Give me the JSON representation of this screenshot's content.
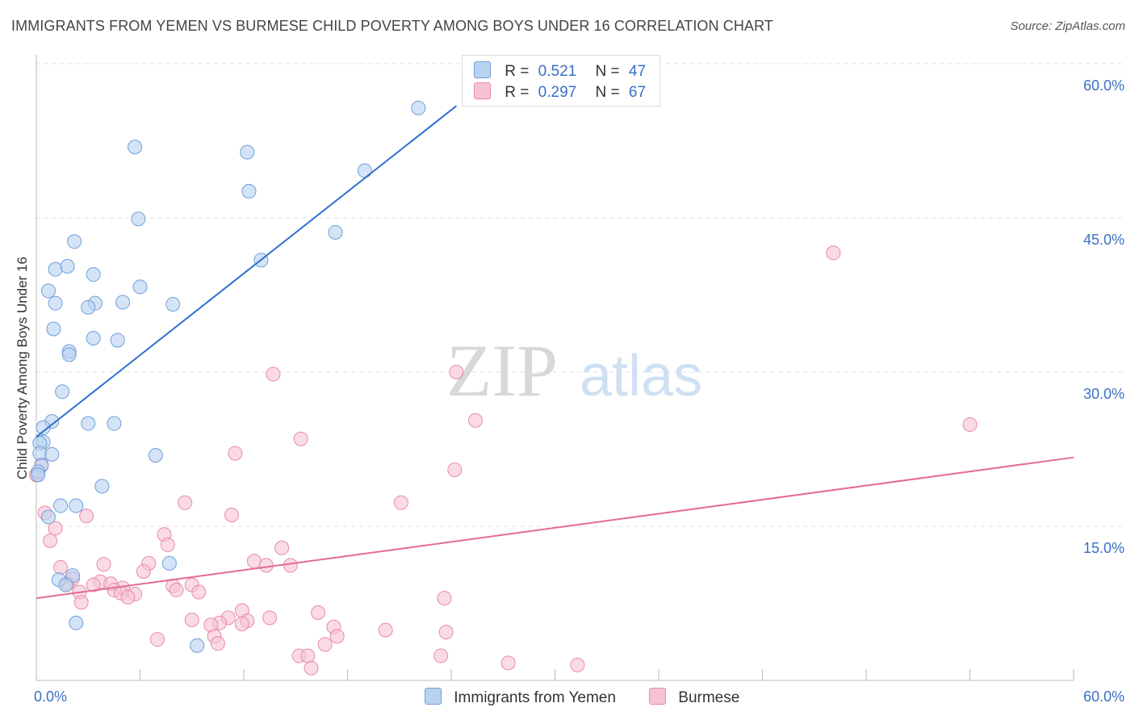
{
  "title": "IMMIGRANTS FROM YEMEN VS BURMESE CHILD POVERTY AMONG BOYS UNDER 16 CORRELATION CHART",
  "source": "Source: ZipAtlas.com",
  "watermark": {
    "zip": "ZIP",
    "atlas": "atlas"
  },
  "legend": {
    "r_label": "R =",
    "n_label": "N =",
    "series": [
      {
        "r": "0.521",
        "n": "47"
      },
      {
        "r": "0.297",
        "n": "67"
      }
    ]
  },
  "chart_data": {
    "type": "scatter",
    "title": "IMMIGRANTS FROM YEMEN VS BURMESE CHILD POVERTY AMONG BOYS UNDER 16 CORRELATION CHART",
    "xlabel": "",
    "ylabel": "Child Poverty Among Boys Under 16",
    "xlim": [
      0,
      60
    ],
    "ylim": [
      0,
      60
    ],
    "x_tick_labels": [
      "0.0%",
      "60.0%"
    ],
    "y_tick_labels": [
      "15.0%",
      "30.0%",
      "45.0%",
      "60.0%"
    ],
    "y_ticks": [
      15,
      30,
      45,
      60
    ],
    "grid": true,
    "colors": {
      "yemen_fill": "#b8d2f0",
      "yemen_stroke": "#6f9fd8",
      "yemen_line": "#2f6fcf",
      "burmese_fill": "#f7c3d3",
      "burmese_stroke": "#e88aa8",
      "burmese_line": "#e26b98",
      "tick_label": "#3a6fc4"
    },
    "series": [
      {
        "name": "Immigrants from Yemen",
        "trend": {
          "x": [
            0,
            24.3
          ],
          "y": [
            23.7,
            55.9
          ]
        },
        "points": [
          [
            22.1,
            55.7
          ],
          [
            5.7,
            51.9
          ],
          [
            12.2,
            51.4
          ],
          [
            19.0,
            49.6
          ],
          [
            12.3,
            47.6
          ],
          [
            5.9,
            44.9
          ],
          [
            17.3,
            43.6
          ],
          [
            2.2,
            42.7
          ],
          [
            13.0,
            40.9
          ],
          [
            1.1,
            40.0
          ],
          [
            1.8,
            40.3
          ],
          [
            3.3,
            39.5
          ],
          [
            6.0,
            38.3
          ],
          [
            0.7,
            37.9
          ],
          [
            1.1,
            36.7
          ],
          [
            3.4,
            36.7
          ],
          [
            5.0,
            36.8
          ],
          [
            7.9,
            36.6
          ],
          [
            3.0,
            36.3
          ],
          [
            1.0,
            34.2
          ],
          [
            3.3,
            33.3
          ],
          [
            4.7,
            33.1
          ],
          [
            1.9,
            32.0
          ],
          [
            1.9,
            31.7
          ],
          [
            1.5,
            28.1
          ],
          [
            0.9,
            25.2
          ],
          [
            3.0,
            25.0
          ],
          [
            4.5,
            25.0
          ],
          [
            0.4,
            24.6
          ],
          [
            0.4,
            23.2
          ],
          [
            0.2,
            23.1
          ],
          [
            0.2,
            22.1
          ],
          [
            0.9,
            22.0
          ],
          [
            6.9,
            21.9
          ],
          [
            0.3,
            20.9
          ],
          [
            0.1,
            20.3
          ],
          [
            0.1,
            20.0
          ],
          [
            3.8,
            18.9
          ],
          [
            1.4,
            17.0
          ],
          [
            2.3,
            17.0
          ],
          [
            0.7,
            15.9
          ],
          [
            7.7,
            11.4
          ],
          [
            1.3,
            9.8
          ],
          [
            2.1,
            10.2
          ],
          [
            1.7,
            9.3
          ],
          [
            2.3,
            5.6
          ],
          [
            9.3,
            3.4
          ]
        ]
      },
      {
        "name": "Burmese",
        "trend": {
          "x": [
            0,
            60
          ],
          "y": [
            8.0,
            21.7
          ]
        },
        "points": [
          [
            46.1,
            41.6
          ],
          [
            13.7,
            29.8
          ],
          [
            24.3,
            30.0
          ],
          [
            25.4,
            25.3
          ],
          [
            54.0,
            24.9
          ],
          [
            15.3,
            23.5
          ],
          [
            11.5,
            22.1
          ],
          [
            24.2,
            20.5
          ],
          [
            21.1,
            17.3
          ],
          [
            8.6,
            17.3
          ],
          [
            11.3,
            16.1
          ],
          [
            2.9,
            16.0
          ],
          [
            0.5,
            16.3
          ],
          [
            1.1,
            14.8
          ],
          [
            0.8,
            13.6
          ],
          [
            7.4,
            14.2
          ],
          [
            7.6,
            13.2
          ],
          [
            14.2,
            12.9
          ],
          [
            12.6,
            11.6
          ],
          [
            14.7,
            11.2
          ],
          [
            13.3,
            11.2
          ],
          [
            6.5,
            11.4
          ],
          [
            3.9,
            11.3
          ],
          [
            1.4,
            11.0
          ],
          [
            6.2,
            10.6
          ],
          [
            2.1,
            9.9
          ],
          [
            1.8,
            9.4
          ],
          [
            3.7,
            9.6
          ],
          [
            3.3,
            9.3
          ],
          [
            4.3,
            9.4
          ],
          [
            5.0,
            9.0
          ],
          [
            4.5,
            8.8
          ],
          [
            7.9,
            9.2
          ],
          [
            9.0,
            9.3
          ],
          [
            8.1,
            8.8
          ],
          [
            9.4,
            8.6
          ],
          [
            4.9,
            8.5
          ],
          [
            5.7,
            8.4
          ],
          [
            2.5,
            8.6
          ],
          [
            5.3,
            8.1
          ],
          [
            23.6,
            8.0
          ],
          [
            2.6,
            7.6
          ],
          [
            11.9,
            6.8
          ],
          [
            16.3,
            6.6
          ],
          [
            11.1,
            6.1
          ],
          [
            13.5,
            6.1
          ],
          [
            9.0,
            5.9
          ],
          [
            10.6,
            5.6
          ],
          [
            12.2,
            5.8
          ],
          [
            11.9,
            5.5
          ],
          [
            10.1,
            5.4
          ],
          [
            17.2,
            5.2
          ],
          [
            20.2,
            4.9
          ],
          [
            23.7,
            4.7
          ],
          [
            17.4,
            4.3
          ],
          [
            10.3,
            4.3
          ],
          [
            7.0,
            4.0
          ],
          [
            10.5,
            3.6
          ],
          [
            16.7,
            3.5
          ],
          [
            15.2,
            2.4
          ],
          [
            15.7,
            2.4
          ],
          [
            23.4,
            2.4
          ],
          [
            15.9,
            1.2
          ],
          [
            27.3,
            1.7
          ],
          [
            31.3,
            1.5
          ],
          [
            0.0,
            20.0
          ],
          [
            0.3,
            21.0
          ]
        ]
      }
    ]
  }
}
